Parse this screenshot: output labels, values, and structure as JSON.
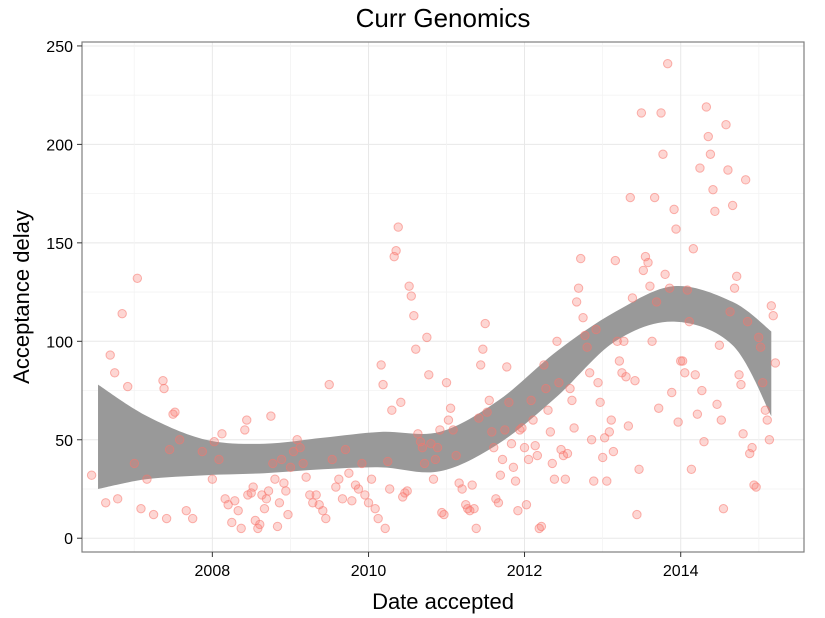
{
  "chart_data": {
    "type": "scatter",
    "title": "Curr Genomics",
    "xlabel": "Date accepted",
    "ylabel": "Acceptance delay",
    "xlim": [
      "2006-05-01",
      "2015-08-01"
    ],
    "ylim": [
      -7,
      252
    ],
    "x_ticks": [
      {
        "value": "2008-01-01",
        "label": "2008"
      },
      {
        "value": "2010-01-01",
        "label": "2010"
      },
      {
        "value": "2012-01-01",
        "label": "2012"
      },
      {
        "value": "2014-01-01",
        "label": "2014"
      }
    ],
    "y_ticks": [
      0,
      50,
      100,
      150,
      200,
      250
    ],
    "grid": true,
    "legend": "none",
    "point_color": "#f8766d",
    "band_color": "#999999",
    "series": [
      {
        "points": [
          [
            "2006-06-15",
            32
          ],
          [
            "2006-08-20",
            18
          ],
          [
            "2006-09-10",
            93
          ],
          [
            "2006-10-01",
            84
          ],
          [
            "2006-10-15",
            20
          ],
          [
            "2006-11-05",
            114
          ],
          [
            "2006-12-01",
            77
          ],
          [
            "2007-01-01",
            38
          ],
          [
            "2007-01-15",
            132
          ],
          [
            "2007-02-01",
            15
          ],
          [
            "2007-03-01",
            30
          ],
          [
            "2007-04-01",
            12
          ],
          [
            "2007-05-15",
            80
          ],
          [
            "2007-05-20",
            76
          ],
          [
            "2007-06-01",
            10
          ],
          [
            "2007-06-15",
            45
          ],
          [
            "2007-07-01",
            63
          ],
          [
            "2007-07-10",
            64
          ],
          [
            "2007-08-01",
            50
          ],
          [
            "2007-09-01",
            14
          ],
          [
            "2007-10-01",
            10
          ],
          [
            "2007-11-15",
            44
          ],
          [
            "2008-01-01",
            30
          ],
          [
            "2008-01-10",
            49
          ],
          [
            "2008-02-01",
            40
          ],
          [
            "2008-02-15",
            53
          ],
          [
            "2008-03-01",
            20
          ],
          [
            "2008-03-15",
            17
          ],
          [
            "2008-04-01",
            8
          ],
          [
            "2008-04-15",
            19
          ],
          [
            "2008-05-01",
            14
          ],
          [
            "2008-05-15",
            5
          ],
          [
            "2008-06-01",
            55
          ],
          [
            "2008-06-10",
            60
          ],
          [
            "2008-06-15",
            22
          ],
          [
            "2008-07-01",
            23
          ],
          [
            "2008-07-10",
            26
          ],
          [
            "2008-07-20",
            9
          ],
          [
            "2008-08-01",
            5
          ],
          [
            "2008-08-10",
            7
          ],
          [
            "2008-08-20",
            22
          ],
          [
            "2008-09-01",
            15
          ],
          [
            "2008-09-10",
            20
          ],
          [
            "2008-09-20",
            24
          ],
          [
            "2008-10-01",
            62
          ],
          [
            "2008-10-10",
            38
          ],
          [
            "2008-10-20",
            30
          ],
          [
            "2008-11-01",
            6
          ],
          [
            "2008-11-10",
            18
          ],
          [
            "2008-11-20",
            40
          ],
          [
            "2008-12-01",
            28
          ],
          [
            "2008-12-10",
            24
          ],
          [
            "2008-12-20",
            12
          ],
          [
            "2009-01-01",
            36
          ],
          [
            "2009-01-15",
            44
          ],
          [
            "2009-02-01",
            50
          ],
          [
            "2009-02-15",
            46
          ],
          [
            "2009-03-01",
            38
          ],
          [
            "2009-03-15",
            31
          ],
          [
            "2009-04-01",
            22
          ],
          [
            "2009-04-15",
            18
          ],
          [
            "2009-05-01",
            22
          ],
          [
            "2009-05-15",
            17
          ],
          [
            "2009-06-01",
            14
          ],
          [
            "2009-06-15",
            10
          ],
          [
            "2009-07-01",
            78
          ],
          [
            "2009-07-15",
            40
          ],
          [
            "2009-08-01",
            26
          ],
          [
            "2009-08-15",
            30
          ],
          [
            "2009-09-01",
            20
          ],
          [
            "2009-09-15",
            45
          ],
          [
            "2009-10-01",
            33
          ],
          [
            "2009-10-15",
            19
          ],
          [
            "2009-11-01",
            27
          ],
          [
            "2009-11-15",
            25
          ],
          [
            "2009-12-01",
            38
          ],
          [
            "2009-12-15",
            22
          ],
          [
            "2010-01-01",
            18
          ],
          [
            "2010-01-15",
            30
          ],
          [
            "2010-02-01",
            15
          ],
          [
            "2010-02-15",
            10
          ],
          [
            "2010-03-01",
            88
          ],
          [
            "2010-03-10",
            78
          ],
          [
            "2010-03-20",
            5
          ],
          [
            "2010-04-01",
            39
          ],
          [
            "2010-04-10",
            25
          ],
          [
            "2010-04-20",
            65
          ],
          [
            "2010-05-01",
            143
          ],
          [
            "2010-05-10",
            146
          ],
          [
            "2010-05-20",
            158
          ],
          [
            "2010-06-01",
            69
          ],
          [
            "2010-06-10",
            21
          ],
          [
            "2010-06-20",
            23
          ],
          [
            "2010-07-01",
            24
          ],
          [
            "2010-07-10",
            128
          ],
          [
            "2010-07-20",
            123
          ],
          [
            "2010-08-01",
            113
          ],
          [
            "2010-08-10",
            96
          ],
          [
            "2010-08-20",
            53
          ],
          [
            "2010-09-01",
            49
          ],
          [
            "2010-09-10",
            46
          ],
          [
            "2010-09-20",
            38
          ],
          [
            "2010-10-01",
            102
          ],
          [
            "2010-10-10",
            83
          ],
          [
            "2010-10-20",
            48
          ],
          [
            "2010-11-01",
            30
          ],
          [
            "2010-11-10",
            40
          ],
          [
            "2010-11-20",
            46
          ],
          [
            "2010-12-01",
            55
          ],
          [
            "2010-12-10",
            13
          ],
          [
            "2010-12-20",
            12
          ],
          [
            "2011-01-01",
            79
          ],
          [
            "2011-01-10",
            60
          ],
          [
            "2011-01-20",
            66
          ],
          [
            "2011-02-01",
            55
          ],
          [
            "2011-02-15",
            42
          ],
          [
            "2011-03-01",
            28
          ],
          [
            "2011-03-15",
            25
          ],
          [
            "2011-04-01",
            17
          ],
          [
            "2011-04-10",
            15
          ],
          [
            "2011-04-20",
            14
          ],
          [
            "2011-05-01",
            27
          ],
          [
            "2011-05-10",
            15
          ],
          [
            "2011-05-20",
            5
          ],
          [
            "2011-06-01",
            61
          ],
          [
            "2011-06-10",
            88
          ],
          [
            "2011-06-20",
            96
          ],
          [
            "2011-07-01",
            109
          ],
          [
            "2011-07-10",
            64
          ],
          [
            "2011-07-20",
            70
          ],
          [
            "2011-08-01",
            54
          ],
          [
            "2011-08-10",
            46
          ],
          [
            "2011-08-20",
            20
          ],
          [
            "2011-09-01",
            18
          ],
          [
            "2011-09-10",
            32
          ],
          [
            "2011-09-20",
            40
          ],
          [
            "2011-10-01",
            55
          ],
          [
            "2011-10-10",
            87
          ],
          [
            "2011-10-20",
            69
          ],
          [
            "2011-11-01",
            48
          ],
          [
            "2011-11-10",
            36
          ],
          [
            "2011-11-20",
            29
          ],
          [
            "2011-12-01",
            14
          ],
          [
            "2011-12-10",
            55
          ],
          [
            "2011-12-20",
            56
          ],
          [
            "2012-01-01",
            46
          ],
          [
            "2012-01-10",
            17
          ],
          [
            "2012-01-20",
            40
          ],
          [
            "2012-02-01",
            70
          ],
          [
            "2012-02-10",
            60
          ],
          [
            "2012-02-20",
            47
          ],
          [
            "2012-03-01",
            42
          ],
          [
            "2012-03-10",
            5
          ],
          [
            "2012-03-20",
            6
          ],
          [
            "2012-04-01",
            88
          ],
          [
            "2012-04-10",
            76
          ],
          [
            "2012-04-20",
            65
          ],
          [
            "2012-05-01",
            54
          ],
          [
            "2012-05-10",
            38
          ],
          [
            "2012-05-20",
            30
          ],
          [
            "2012-06-01",
            100
          ],
          [
            "2012-06-10",
            79
          ],
          [
            "2012-06-20",
            45
          ],
          [
            "2012-07-01",
            42
          ],
          [
            "2012-07-10",
            30
          ],
          [
            "2012-07-20",
            43
          ],
          [
            "2012-08-01",
            76
          ],
          [
            "2012-08-10",
            70
          ],
          [
            "2012-08-20",
            56
          ],
          [
            "2012-09-01",
            120
          ],
          [
            "2012-09-10",
            127
          ],
          [
            "2012-09-20",
            142
          ],
          [
            "2012-10-01",
            112
          ],
          [
            "2012-10-10",
            103
          ],
          [
            "2012-10-20",
            97
          ],
          [
            "2012-11-01",
            84
          ],
          [
            "2012-11-10",
            50
          ],
          [
            "2012-11-20",
            29
          ],
          [
            "2012-12-01",
            106
          ],
          [
            "2012-12-10",
            79
          ],
          [
            "2012-12-20",
            69
          ],
          [
            "2013-01-01",
            41
          ],
          [
            "2013-01-10",
            51
          ],
          [
            "2013-01-20",
            29
          ],
          [
            "2013-02-01",
            54
          ],
          [
            "2013-02-10",
            60
          ],
          [
            "2013-02-20",
            44
          ],
          [
            "2013-03-01",
            141
          ],
          [
            "2013-03-10",
            100
          ],
          [
            "2013-03-20",
            90
          ],
          [
            "2013-04-01",
            84
          ],
          [
            "2013-04-10",
            100
          ],
          [
            "2013-04-20",
            82
          ],
          [
            "2013-05-01",
            57
          ],
          [
            "2013-05-10",
            173
          ],
          [
            "2013-05-20",
            122
          ],
          [
            "2013-06-01",
            80
          ],
          [
            "2013-06-10",
            12
          ],
          [
            "2013-06-20",
            35
          ],
          [
            "2013-07-01",
            216
          ],
          [
            "2013-07-10",
            136
          ],
          [
            "2013-07-20",
            143
          ],
          [
            "2013-08-01",
            140
          ],
          [
            "2013-08-10",
            128
          ],
          [
            "2013-08-20",
            100
          ],
          [
            "2013-09-01",
            173
          ],
          [
            "2013-09-10",
            120
          ],
          [
            "2013-09-20",
            66
          ],
          [
            "2013-10-01",
            216
          ],
          [
            "2013-10-10",
            195
          ],
          [
            "2013-10-20",
            134
          ],
          [
            "2013-11-01",
            241
          ],
          [
            "2013-11-10",
            127
          ],
          [
            "2013-11-20",
            74
          ],
          [
            "2013-12-01",
            167
          ],
          [
            "2013-12-10",
            157
          ],
          [
            "2013-12-20",
            59
          ],
          [
            "2014-01-01",
            90
          ],
          [
            "2014-01-10",
            90
          ],
          [
            "2014-01-20",
            84
          ],
          [
            "2014-02-01",
            126
          ],
          [
            "2014-02-10",
            110
          ],
          [
            "2014-02-20",
            35
          ],
          [
            "2014-03-01",
            147
          ],
          [
            "2014-03-10",
            83
          ],
          [
            "2014-03-20",
            63
          ],
          [
            "2014-04-01",
            188
          ],
          [
            "2014-04-10",
            75
          ],
          [
            "2014-04-20",
            49
          ],
          [
            "2014-05-01",
            219
          ],
          [
            "2014-05-10",
            204
          ],
          [
            "2014-05-20",
            195
          ],
          [
            "2014-06-01",
            177
          ],
          [
            "2014-06-10",
            166
          ],
          [
            "2014-06-20",
            68
          ],
          [
            "2014-07-01",
            98
          ],
          [
            "2014-07-10",
            60
          ],
          [
            "2014-07-20",
            15
          ],
          [
            "2014-08-01",
            210
          ],
          [
            "2014-08-10",
            187
          ],
          [
            "2014-08-20",
            115
          ],
          [
            "2014-09-01",
            169
          ],
          [
            "2014-09-10",
            127
          ],
          [
            "2014-09-20",
            133
          ],
          [
            "2014-10-01",
            83
          ],
          [
            "2014-10-10",
            78
          ],
          [
            "2014-10-20",
            53
          ],
          [
            "2014-11-01",
            182
          ],
          [
            "2014-11-10",
            110
          ],
          [
            "2014-11-20",
            43
          ],
          [
            "2014-12-01",
            46
          ],
          [
            "2014-12-10",
            27
          ],
          [
            "2014-12-20",
            26
          ],
          [
            "2015-01-01",
            102
          ],
          [
            "2015-01-10",
            97
          ],
          [
            "2015-01-20",
            79
          ],
          [
            "2015-02-01",
            65
          ],
          [
            "2015-02-10",
            60
          ],
          [
            "2015-02-20",
            50
          ],
          [
            "2015-03-01",
            118
          ],
          [
            "2015-03-10",
            113
          ],
          [
            "2015-03-20",
            89
          ]
        ]
      }
    ],
    "smooth": {
      "x": [
        "2006-07-15",
        "2007-03-01",
        "2007-12-01",
        "2008-09-01",
        "2009-06-01",
        "2010-03-01",
        "2010-12-01",
        "2011-09-01",
        "2012-06-01",
        "2013-03-01",
        "2013-12-01",
        "2014-09-01",
        "2015-03-01"
      ],
      "lower": [
        25,
        30,
        32,
        33,
        35,
        36,
        34,
        48,
        72,
        100,
        110,
        98,
        62
      ],
      "upper": [
        78,
        62,
        50,
        48,
        51,
        54,
        54,
        70,
        95,
        115,
        128,
        120,
        105
      ]
    }
  }
}
